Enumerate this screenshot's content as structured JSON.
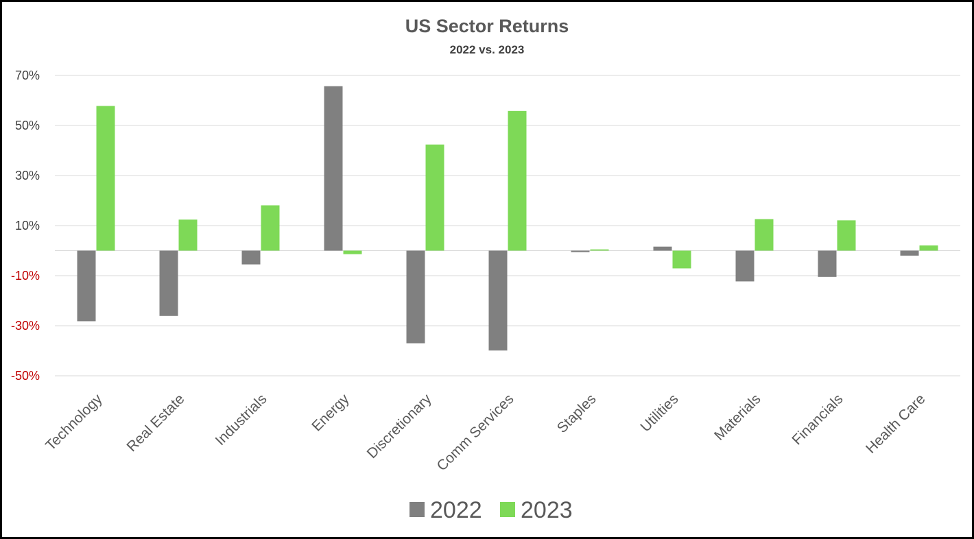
{
  "chart_data": {
    "type": "bar",
    "title": "US Sector Returns",
    "subtitle": "2022 vs. 2023",
    "categories": [
      "Technology",
      "Real Estate",
      "Industrials",
      "Energy",
      "Discretionary",
      "Comm Services",
      "Staples",
      "Utilities",
      "Materials",
      "Financials",
      "Health Care"
    ],
    "series": [
      {
        "name": "2022",
        "color": "#808080",
        "values": [
          -28.2,
          -26.1,
          -5.5,
          65.7,
          -37.0,
          -39.9,
          -0.6,
          1.6,
          -12.3,
          -10.5,
          -2.0
        ]
      },
      {
        "name": "2023",
        "color": "#7ed957",
        "values": [
          57.8,
          12.4,
          18.1,
          -1.4,
          42.4,
          55.8,
          0.5,
          -7.1,
          12.6,
          12.1,
          2.1
        ]
      }
    ],
    "yticks": [
      70,
      50,
      30,
      10,
      -10,
      -30,
      -50
    ],
    "ytick_labels": [
      "70%",
      "50%",
      "30%",
      "10%",
      "-10%",
      "-30%",
      "-50%"
    ],
    "negative_tick_color": "#c00000",
    "ylim": [
      -50,
      70
    ],
    "grid": true,
    "legend_position": "bottom"
  }
}
